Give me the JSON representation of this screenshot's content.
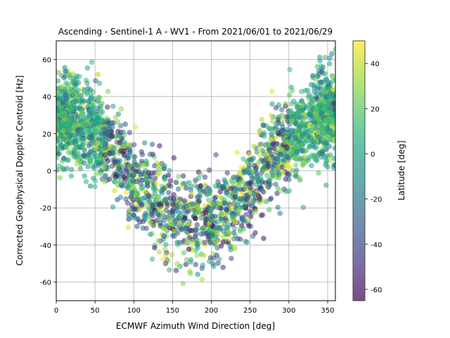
{
  "chart_data": {
    "type": "scatter",
    "title": "Ascending - Sentinel-1 A - WV1 - From 2021/06/01 to 2021/06/29",
    "xlabel": "ECMWF Azimuth Wind Direction [deg]",
    "ylabel": "Corrected Geophysical Doppler Centroid [Hz]",
    "xlim": [
      0,
      360
    ],
    "ylim": [
      -70,
      70
    ],
    "xticks": [
      0,
      50,
      100,
      150,
      200,
      250,
      300,
      350
    ],
    "yticks": [
      -60,
      -40,
      -20,
      0,
      20,
      40,
      60
    ],
    "grid": true,
    "marker_alpha": 0.55,
    "colormap": "viridis",
    "colorbar": {
      "label": "Latitude [deg]",
      "range": [
        -65,
        50
      ],
      "ticks": [
        -60,
        -40,
        -20,
        0,
        20,
        40
      ]
    },
    "trend": {
      "description": "V-shaped distribution with Doppler minimum near 200 deg",
      "points": [
        {
          "x": 0,
          "y": 30
        },
        {
          "x": 25,
          "y": 28
        },
        {
          "x": 50,
          "y": 20
        },
        {
          "x": 75,
          "y": 10
        },
        {
          "x": 100,
          "y": -5
        },
        {
          "x": 125,
          "y": -15
        },
        {
          "x": 150,
          "y": -22
        },
        {
          "x": 175,
          "y": -26
        },
        {
          "x": 200,
          "y": -27
        },
        {
          "x": 225,
          "y": -22
        },
        {
          "x": 250,
          "y": -10
        },
        {
          "x": 275,
          "y": 5
        },
        {
          "x": 300,
          "y": 15
        },
        {
          "x": 325,
          "y": 25
        },
        {
          "x": 350,
          "y": 30
        },
        {
          "x": 360,
          "y": 31
        }
      ],
      "spread": 12
    },
    "series": [
      {
        "count": 2600
      }
    ]
  }
}
